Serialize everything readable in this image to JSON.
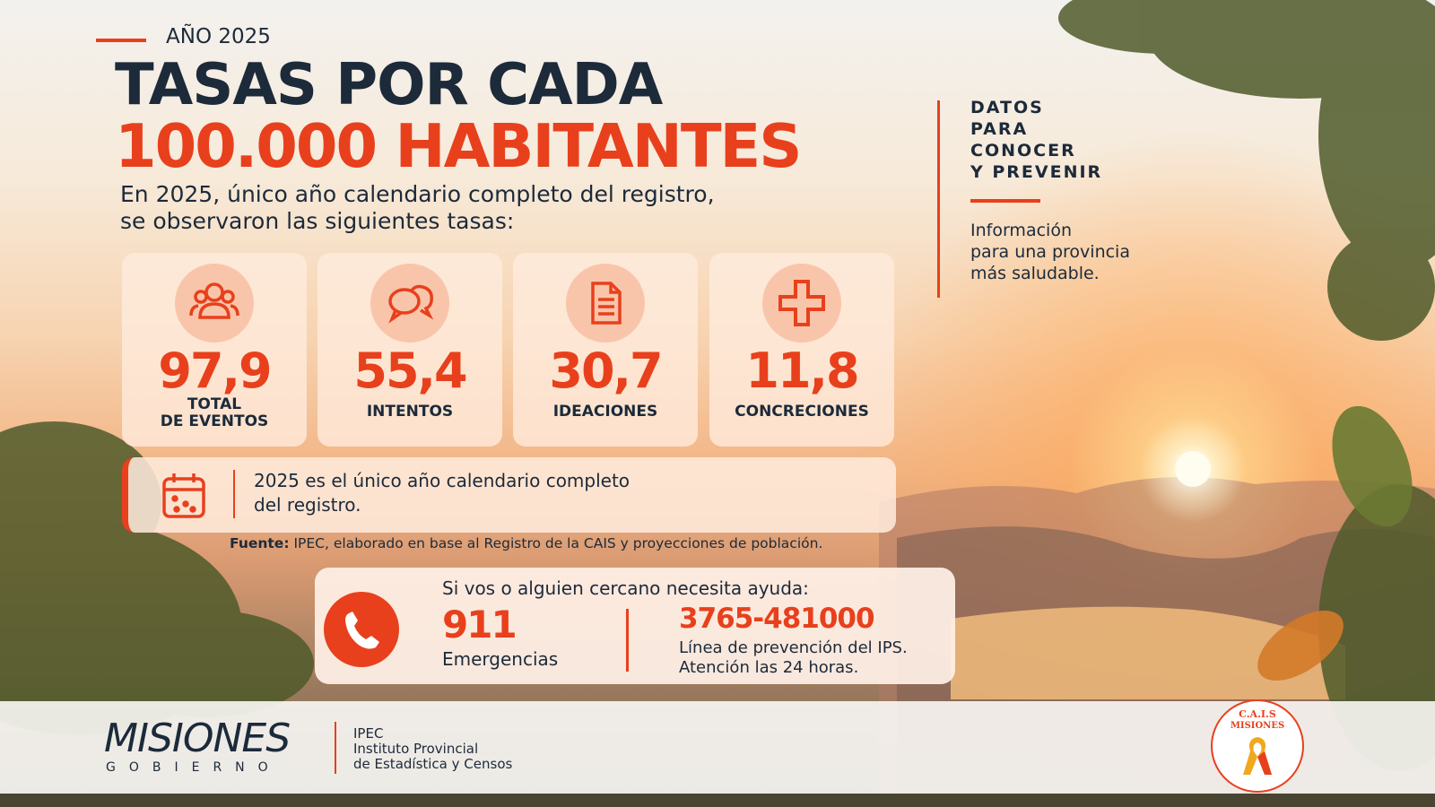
{
  "header": {
    "year_label": "AÑO 2025",
    "title_line1": "TASAS POR CADA",
    "title_line2": "100.000 HABITANTES",
    "subtitle_lines": [
      "En 2025, único año calendario completo del registro,",
      "se observaron las siguientes tasas:"
    ]
  },
  "side_panel": {
    "heading_lines": [
      "DATOS",
      "PARA",
      "CONOCER",
      "Y PREVENIR"
    ],
    "text_lines": [
      "Información",
      "para una provincia",
      "más saludable."
    ]
  },
  "stats": [
    {
      "value": "97,9",
      "label_lines": [
        "TOTAL",
        "DE EVENTOS"
      ]
    },
    {
      "value": "55,4",
      "label_lines": [
        "INTENTOS"
      ]
    },
    {
      "value": "30,7",
      "label_lines": [
        "IDEACIONES"
      ]
    },
    {
      "value": "11,8",
      "label_lines": [
        "CONCRECIONES"
      ]
    }
  ],
  "note": {
    "lines": [
      "2025 es el único año calendario completo",
      "del registro."
    ]
  },
  "source": {
    "label": "Fuente:",
    "text": "IPEC, elaborado en base al Registro de la CAIS y proyecciones de población."
  },
  "help": {
    "prompt": "Si vos o alguien cercano necesita ayuda:",
    "contacts": [
      {
        "number": "911",
        "description_lines": [
          "Emergencias"
        ]
      },
      {
        "number": "3765-481000",
        "description_lines": [
          "Línea de prevención del IPS.",
          "Atención las 24 horas."
        ]
      }
    ]
  },
  "footer": {
    "gobierno_logo": {
      "name": "MISIONES",
      "subtitle": "GOBIERNO"
    },
    "ipec": {
      "acronym": "IPEC",
      "name_lines": [
        "Instituto Provincial",
        "de Estadística y Censos"
      ]
    },
    "cais_logo": {
      "acronym": "C.A.I.S",
      "region": "MISIONES"
    }
  }
}
